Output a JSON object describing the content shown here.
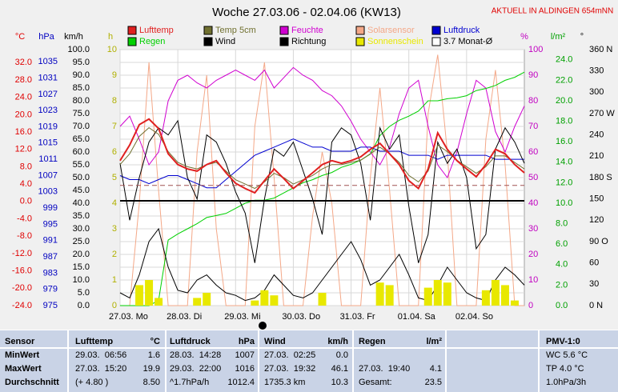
{
  "chart_data": {
    "type": "line",
    "title": "Woche 27.03.06 - 02.04.06 (KW13)",
    "annotation": "AKTUELL IN ALDINGEN 654mNN",
    "xlim": [
      0,
      168
    ],
    "xticks": [
      {
        "value": 0,
        "label": "27.03. Mo"
      },
      {
        "value": 24,
        "label": "28.03. Di"
      },
      {
        "value": 48,
        "label": "29.03. Mi"
      },
      {
        "value": 72,
        "label": "30.03. Do"
      },
      {
        "value": 96,
        "label": "31.03. Fr"
      },
      {
        "value": 120,
        "label": "01.04. Sa"
      },
      {
        "value": 144,
        "label": "02.04. So"
      }
    ],
    "grid": true,
    "axes": [
      {
        "label": "°C",
        "color": "#e00000",
        "lim": [
          -24,
          35
        ],
        "ticks": [
          {
            "value": 32,
            "label": "32.0"
          },
          {
            "value": 28,
            "label": "28.0"
          },
          {
            "value": 24,
            "label": "24.0"
          },
          {
            "value": 20,
            "label": "20.0"
          },
          {
            "value": 16,
            "label": "16.0"
          },
          {
            "value": 12,
            "label": "12.0"
          },
          {
            "value": 8,
            "label": "8.0"
          },
          {
            "value": 4,
            "label": "4.0"
          },
          {
            "value": 0,
            "label": "0.0"
          },
          {
            "value": -4,
            "label": "-4.0"
          },
          {
            "value": -8,
            "label": "-8.0"
          },
          {
            "value": -12,
            "label": "-12.0"
          },
          {
            "value": -16,
            "label": "-16.0"
          },
          {
            "value": -20,
            "label": "-20.0"
          },
          {
            "value": -24,
            "label": "-24.0"
          }
        ]
      },
      {
        "label": "hPa",
        "color": "#0000c0",
        "lim": [
          975,
          1038
        ],
        "ticks": [
          1035,
          1031,
          1027,
          1023,
          1019,
          1015,
          1011,
          1007,
          1003,
          999,
          995,
          991,
          987,
          983,
          979,
          975
        ]
      },
      {
        "label": "km/h",
        "color": "#000000",
        "lim": [
          0,
          100
        ],
        "ticks": [
          {
            "value": 100,
            "label": "100.0"
          },
          {
            "value": 95,
            "label": "95.0"
          },
          {
            "value": 90,
            "label": "90.0"
          },
          {
            "value": 85,
            "label": "85.0"
          },
          {
            "value": 80,
            "label": "80.0"
          },
          {
            "value": 75,
            "label": "75.0"
          },
          {
            "value": 70,
            "label": "70.0"
          },
          {
            "value": 65,
            "label": "65.0"
          },
          {
            "value": 60,
            "label": "60.0"
          },
          {
            "value": 55,
            "label": "55.0"
          },
          {
            "value": 50,
            "label": "50.0"
          },
          {
            "value": 45,
            "label": "45.0"
          },
          {
            "value": 40,
            "label": "40.0"
          },
          {
            "value": 35,
            "label": "35.0"
          },
          {
            "value": 30,
            "label": "30.0"
          },
          {
            "value": 25,
            "label": "25.0"
          },
          {
            "value": 20,
            "label": "20.0"
          },
          {
            "value": 15,
            "label": "15.0"
          },
          {
            "value": 10,
            "label": "10.0"
          },
          {
            "value": 5,
            "label": "5.0"
          },
          {
            "value": 0,
            "label": "0.0"
          }
        ]
      },
      {
        "label": "h",
        "color": "#b0b000",
        "lim": [
          0,
          10
        ],
        "ticks": [
          10,
          9,
          8,
          7,
          6,
          5,
          4,
          3,
          2,
          1,
          0
        ]
      },
      {
        "label": "%",
        "color": "#c000c0",
        "lim": [
          0,
          100
        ],
        "ticks": [
          100,
          90,
          80,
          70,
          60,
          50,
          40,
          30,
          20,
          10,
          0
        ]
      },
      {
        "label": "l/m²",
        "color": "#00a000",
        "lim": [
          0,
          25
        ],
        "ticks": [
          {
            "value": 24,
            "label": "24.0"
          },
          {
            "value": 22,
            "label": "22.0"
          },
          {
            "value": 20,
            "label": "20.0"
          },
          {
            "value": 18,
            "label": "18.0"
          },
          {
            "value": 16,
            "label": "16.0"
          },
          {
            "value": 14,
            "label": "14.0"
          },
          {
            "value": 12,
            "label": "12.0"
          },
          {
            "value": 10,
            "label": "10.0"
          },
          {
            "value": 8,
            "label": "8.0"
          },
          {
            "value": 6,
            "label": "6.0"
          },
          {
            "value": 4,
            "label": "4.0"
          },
          {
            "value": 2,
            "label": "2.0"
          },
          {
            "value": 0,
            "label": "0.0"
          }
        ]
      },
      {
        "label": "°",
        "color": "#000000",
        "lim": [
          0,
          360
        ],
        "ticks": [
          {
            "value": 360,
            "label": "360 N"
          },
          330,
          300,
          {
            "value": 270,
            "label": "270 W"
          },
          240,
          210,
          {
            "value": 180,
            "label": "180 S"
          },
          150,
          120,
          {
            "value": 90,
            "label": "90 O"
          },
          60,
          30,
          {
            "value": 0,
            "label": "0 N"
          }
        ]
      }
    ],
    "x": [
      0,
      4,
      8,
      12,
      16,
      20,
      24,
      28,
      32,
      36,
      40,
      44,
      48,
      52,
      56,
      60,
      64,
      68,
      72,
      76,
      80,
      84,
      88,
      92,
      96,
      100,
      104,
      108,
      112,
      116,
      120,
      124,
      128,
      132,
      136,
      140,
      144,
      148,
      152,
      156,
      160,
      164,
      168
    ],
    "series": [
      {
        "name": "Lufttemp",
        "color": "#e02020",
        "axis": 0,
        "values": [
          9.4,
          13,
          17.7,
          19,
          16.8,
          11,
          8.5,
          7.5,
          7,
          8.5,
          9.4,
          6.6,
          4.2,
          3,
          2,
          4.8,
          7.5,
          5.3,
          3,
          4.8,
          6.6,
          8.5,
          9.4,
          8.8,
          9.4,
          10.3,
          12,
          13.4,
          11,
          8.5,
          4.8,
          3,
          7.5,
          15.8,
          12,
          9.4,
          7.5,
          5.7,
          8.5,
          12,
          11,
          8.5,
          6.6
        ]
      },
      {
        "name": "Regen",
        "color": "#00d000",
        "axis": 5,
        "values": [
          0,
          0,
          0,
          0,
          0.5,
          6.4,
          7,
          7.5,
          8,
          8.6,
          8.8,
          9,
          9.5,
          10,
          10.3,
          10.3,
          10.5,
          11,
          11.5,
          12,
          12.3,
          12.7,
          13,
          13.5,
          13.8,
          14.2,
          14.8,
          16.6,
          17.5,
          18.1,
          18.5,
          19,
          20,
          20,
          20.2,
          20.3,
          20.5,
          21,
          21.2,
          21.5,
          22,
          22.3,
          22.8
        ]
      },
      {
        "name": "Temp 5cm",
        "color": "#707030",
        "axis": 0,
        "values": [
          8.5,
          11,
          15,
          17,
          15.5,
          11.5,
          9,
          8,
          7.5,
          8.5,
          9,
          7,
          5,
          4,
          3,
          4.5,
          6.5,
          5.5,
          4,
          5,
          6,
          7.5,
          8.5,
          8.5,
          9,
          9.5,
          11,
          12.5,
          11,
          9,
          6,
          4.5,
          7,
          13,
          11.5,
          9.5,
          8,
          6.5,
          8,
          10.5,
          10.5,
          9,
          7.5
        ]
      },
      {
        "name": "Wind",
        "color": "#000000",
        "axis": 2,
        "values": [
          5,
          3,
          12,
          25,
          30,
          15,
          6,
          5,
          10,
          12,
          8,
          5,
          4,
          2,
          3,
          6,
          12,
          8,
          4,
          3,
          5,
          10,
          15,
          20,
          25,
          18,
          8,
          10,
          15,
          20,
          12,
          3,
          2,
          8,
          15,
          10,
          5,
          3,
          2,
          10,
          15,
          12,
          8
        ]
      },
      {
        "name": "Feuchte",
        "color": "#d000d0",
        "axis": 4,
        "values": [
          70,
          74,
          65,
          55,
          60,
          80,
          88,
          90,
          87,
          85,
          88,
          90,
          92,
          90,
          88,
          92,
          85,
          89,
          93,
          90,
          88,
          84,
          82,
          78,
          72,
          65,
          60,
          55,
          62,
          75,
          85,
          88,
          70,
          55,
          50,
          60,
          75,
          88,
          85,
          68,
          60,
          70,
          78
        ]
      },
      {
        "name": "Richtung",
        "color": "#000000",
        "axis": 6,
        "values": [
          200,
          120,
          180,
          230,
          250,
          240,
          260,
          180,
          150,
          240,
          230,
          200,
          160,
          130,
          60,
          150,
          220,
          210,
          230,
          190,
          150,
          100,
          230,
          250,
          240,
          200,
          120,
          250,
          220,
          240,
          140,
          60,
          100,
          230,
          200,
          220,
          180,
          80,
          100,
          220,
          250,
          230,
          200
        ]
      },
      {
        "name": "Solarsensor",
        "color": "#f4a888",
        "axis": 4,
        "values": [
          0,
          0,
          40,
          95,
          45,
          0,
          0,
          0,
          60,
          90,
          30,
          0,
          0,
          0,
          70,
          95,
          50,
          0,
          0,
          0,
          35,
          60,
          40,
          0,
          0,
          0,
          50,
          85,
          45,
          0,
          0,
          0,
          75,
          98,
          60,
          0,
          0,
          0,
          65,
          92,
          55,
          0,
          0
        ]
      },
      {
        "name": "Sonnenschein",
        "color": "#e8e800",
        "axis": 3,
        "kind": "bar",
        "values": [
          0,
          0,
          0.8,
          1,
          0.3,
          0,
          0,
          0,
          0.3,
          0.5,
          0,
          0,
          0,
          0,
          0.2,
          0.6,
          0.4,
          0,
          0,
          0,
          0,
          0.5,
          0,
          0,
          0,
          0,
          0,
          0.9,
          0.8,
          0,
          0,
          0,
          0.7,
          1,
          0.9,
          0,
          0,
          0,
          0.6,
          1,
          0.8,
          0.2,
          0
        ]
      },
      {
        "name": "Luftdruck",
        "color": "#0000d0",
        "axis": 1,
        "values": [
          1007,
          1006,
          1006,
          1005,
          1006,
          1007,
          1007,
          1006,
          1005,
          1004,
          1004,
          1006,
          1008,
          1010,
          1012,
          1013,
          1014,
          1015,
          1016,
          1015,
          1014,
          1014,
          1013,
          1013,
          1013,
          1014,
          1014,
          1013,
          1013,
          1013,
          1012,
          1012,
          1012,
          1011,
          1012,
          1012,
          1012,
          1012,
          1012,
          1011,
          1011,
          1011,
          1011
        ]
      }
    ],
    "monthly_avg": {
      "name": "3.7 Monat-Ø",
      "value": 3.7,
      "axis": 0,
      "color": "#a05050"
    },
    "table": {
      "header": [
        "Sensor",
        "Lufttemp",
        "°C",
        "Luftdruck",
        "hPa",
        "Wind",
        "km/h",
        "Regen",
        "l/m²",
        null,
        "PMV-1:0"
      ],
      "rows": [
        [
          "MinWert",
          "29.03.  06:56",
          "1.6",
          "28.03.  14:28",
          "1007",
          "27.03.  02:25",
          "0.0",
          null,
          null,
          null,
          "WC 5.6 °C"
        ],
        [
          "MaxWert",
          "27.03.  15:20",
          "19.9",
          "29.03.  22:00",
          "1016",
          "27.03.  19:32",
          "46.1",
          "27.03.  19:40",
          "4.1",
          null,
          "TP 4.0 °C"
        ],
        [
          "Durchschnitt",
          "(+ 4.80 )",
          "8.50",
          "^1.7hPa/h",
          "1012.4",
          "1735.3 km",
          "10.3",
          "Gesamt:",
          "23.5",
          null,
          "1.0hPa/3h"
        ]
      ]
    }
  }
}
